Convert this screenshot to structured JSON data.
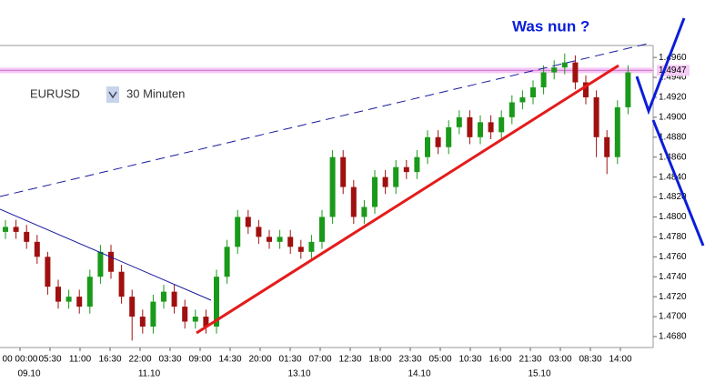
{
  "chart_data": {
    "type": "candlestick",
    "title": "Was nun ?",
    "symbol": "EURUSD",
    "timeframe": "30 Minuten",
    "categories": [
      "00 00:00",
      "05:30",
      "11:00",
      "16:30",
      "22:00",
      "03:30",
      "09:00",
      "14:30",
      "20:00",
      "01:30",
      "07:00",
      "12:30",
      "18:00",
      "23:30",
      "05:00",
      "10:30",
      "16:00",
      "21:30",
      "03:00",
      "08:30",
      "14:00"
    ],
    "dates": [
      "09.10",
      null,
      null,
      null,
      "11.10",
      null,
      null,
      null,
      null,
      "13.10",
      null,
      null,
      null,
      "14.10",
      null,
      null,
      null,
      "15.10",
      null,
      null,
      null
    ],
    "open": [
      1.4785,
      1.479,
      1.4785,
      1.4775,
      1.476,
      1.473,
      1.4715,
      1.472,
      1.471,
      1.474,
      1.4765,
      1.4745,
      1.472,
      1.47,
      1.469,
      1.4715,
      1.4725,
      1.471,
      1.4695,
      1.47,
      1.469,
      1.474,
      1.477,
      1.48,
      1.479,
      1.478,
      1.4775,
      1.478,
      1.477,
      1.4765,
      1.4775,
      1.48,
      1.486,
      1.483,
      1.48,
      1.481,
      1.484,
      1.483,
      1.485,
      1.4845,
      1.486,
      1.488,
      1.487,
      1.489,
      1.49,
      1.488,
      1.4895,
      1.4885,
      1.49,
      1.4915,
      1.492,
      1.493,
      1.4945,
      1.495,
      1.4955,
      1.4935,
      1.492,
      1.488,
      1.486,
      1.491
    ],
    "high": [
      1.4797,
      1.4797,
      1.4792,
      1.4782,
      1.4765,
      1.4737,
      1.4727,
      1.4727,
      1.4747,
      1.4772,
      1.4772,
      1.4752,
      1.4727,
      1.4707,
      1.4722,
      1.4732,
      1.4732,
      1.4717,
      1.4707,
      1.4707,
      1.4747,
      1.4777,
      1.4807,
      1.4807,
      1.4797,
      1.4787,
      1.4787,
      1.4787,
      1.4777,
      1.4782,
      1.4807,
      1.4867,
      1.4867,
      1.4837,
      1.4817,
      1.4847,
      1.4847,
      1.4857,
      1.4857,
      1.4867,
      1.4887,
      1.4887,
      1.4897,
      1.4907,
      1.4907,
      1.4902,
      1.4902,
      1.4907,
      1.4922,
      1.4927,
      1.4937,
      1.4952,
      1.4957,
      1.4964,
      1.4962,
      1.4942,
      1.4927,
      1.4887,
      1.4917,
      1.4952
    ],
    "low": [
      1.4778,
      1.4778,
      1.4768,
      1.4753,
      1.4722,
      1.4708,
      1.4708,
      1.4703,
      1.4703,
      1.4733,
      1.4738,
      1.4713,
      1.4676,
      1.4683,
      1.4683,
      1.4708,
      1.4703,
      1.4688,
      1.4688,
      1.4683,
      1.4683,
      1.4733,
      1.4763,
      1.4783,
      1.4773,
      1.4768,
      1.4768,
      1.4763,
      1.4758,
      1.4758,
      1.4768,
      1.4793,
      1.4823,
      1.4793,
      1.4793,
      1.4803,
      1.4823,
      1.4823,
      1.4838,
      1.4838,
      1.4853,
      1.4863,
      1.4863,
      1.4883,
      1.4873,
      1.4873,
      1.4878,
      1.4878,
      1.4893,
      1.4908,
      1.4913,
      1.4923,
      1.4938,
      1.4943,
      1.4928,
      1.4913,
      1.486,
      1.4843,
      1.4853,
      1.4903
    ],
    "close": [
      1.479,
      1.4785,
      1.4775,
      1.476,
      1.473,
      1.4715,
      1.472,
      1.471,
      1.474,
      1.4765,
      1.4745,
      1.472,
      1.47,
      1.469,
      1.4715,
      1.4725,
      1.471,
      1.4695,
      1.47,
      1.469,
      1.474,
      1.477,
      1.48,
      1.479,
      1.478,
      1.4775,
      1.478,
      1.477,
      1.4765,
      1.4775,
      1.48,
      1.486,
      1.483,
      1.48,
      1.481,
      1.484,
      1.483,
      1.485,
      1.4845,
      1.486,
      1.488,
      1.487,
      1.489,
      1.49,
      1.488,
      1.4895,
      1.4885,
      1.49,
      1.4915,
      1.492,
      1.493,
      1.4945,
      1.495,
      1.4955,
      1.4935,
      1.492,
      1.488,
      1.486,
      1.491,
      1.4945
    ],
    "up_color": "#1a9a1a",
    "down_color": "#a01010",
    "ylim": [
      1.4669,
      1.4972
    ],
    "yticks": [
      {
        "value": 1.468,
        "label": "1.4680"
      },
      {
        "value": 1.47,
        "label": "1.4700"
      },
      {
        "value": 1.472,
        "label": "1.4720"
      },
      {
        "value": 1.474,
        "label": "1.4740"
      },
      {
        "value": 1.476,
        "label": "1.4760"
      },
      {
        "value": 1.478,
        "label": "1.4780"
      },
      {
        "value": 1.48,
        "label": "1.4800"
      },
      {
        "value": 1.482,
        "label": "1.4820"
      },
      {
        "value": 1.484,
        "label": "1.4840"
      },
      {
        "value": 1.486,
        "label": "1.4860"
      },
      {
        "value": 1.488,
        "label": "1.4880"
      },
      {
        "value": 1.49,
        "label": "1.4900"
      },
      {
        "value": 1.492,
        "label": "1.4920"
      },
      {
        "value": 1.494,
        "label": "1.4940"
      },
      {
        "value": 1.496,
        "label": "1.4960"
      }
    ],
    "current_price": {
      "value": 1.4947,
      "label": "1.4947"
    }
  }
}
